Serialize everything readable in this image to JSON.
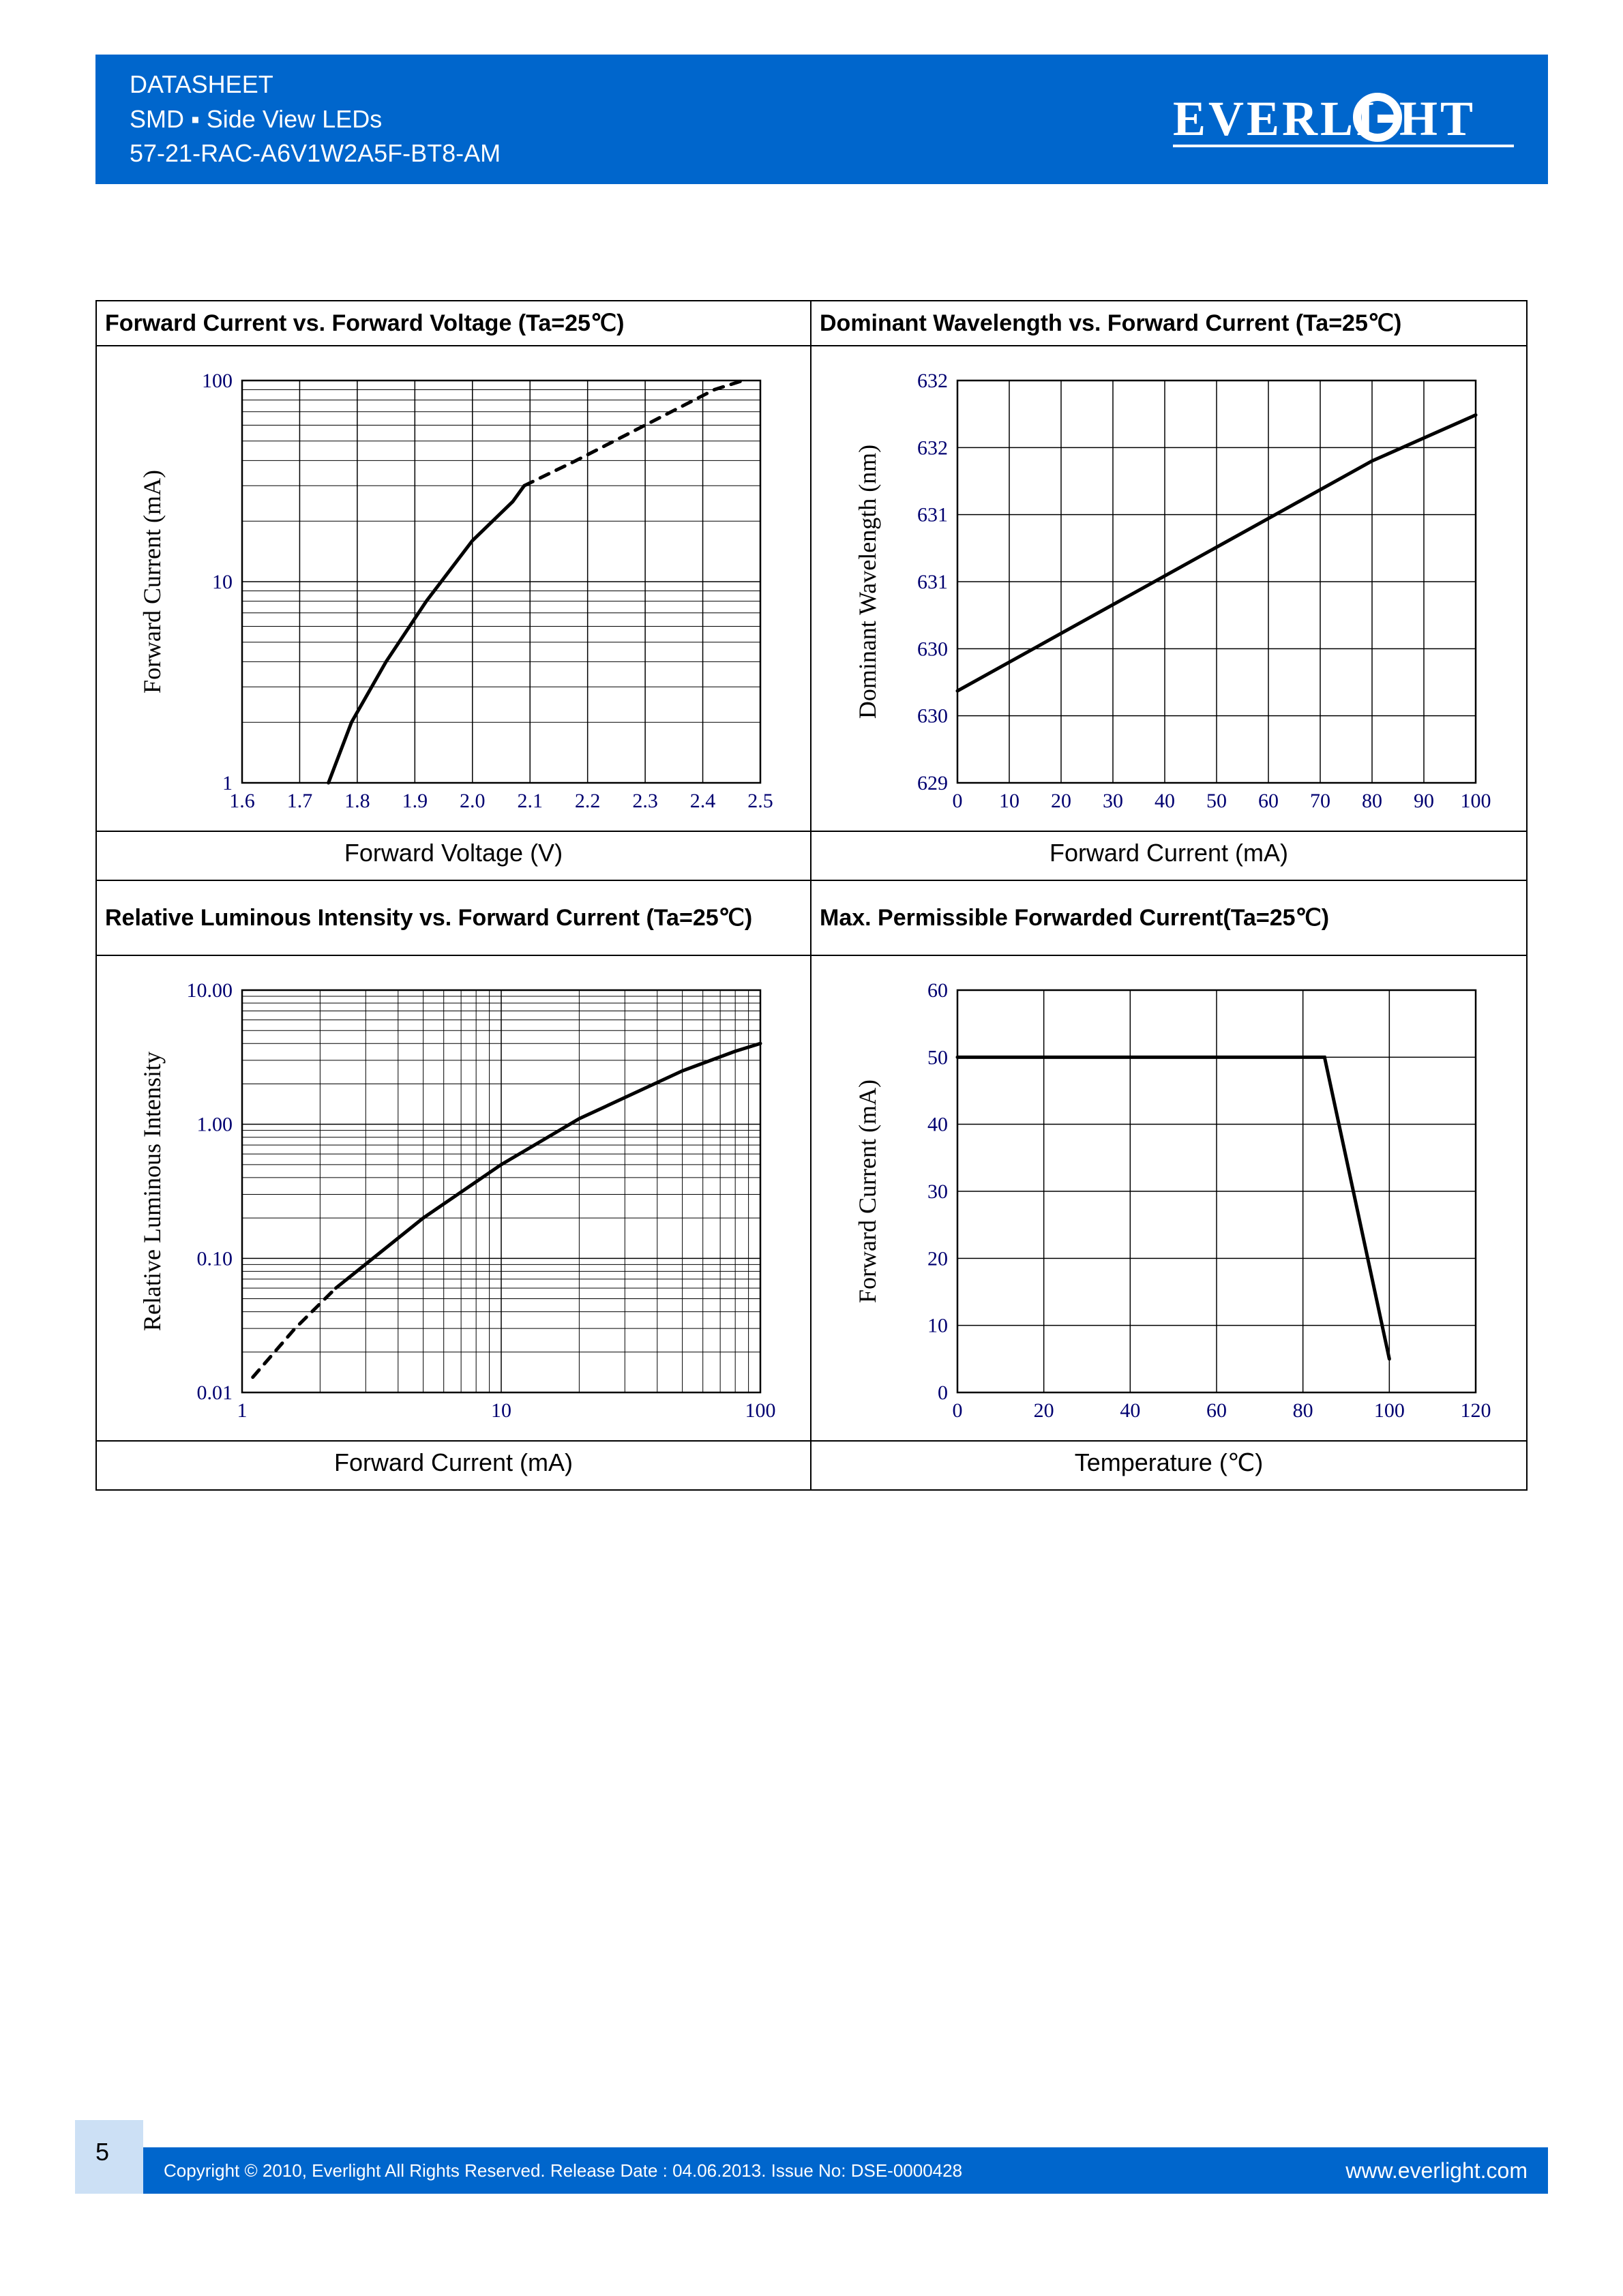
{
  "header": {
    "line1": "DATASHEET",
    "line2": "SMD ▪ Side View LEDs",
    "line3": "57-21-RAC-A6V1W2A5F-BT8-AM",
    "logo_text": "EVERLIGHT"
  },
  "colors": {
    "header_bg": "#0066cc",
    "header_text": "#ffffff",
    "chart_border": "#000000",
    "chart_line": "#000000",
    "chart_text": "#000000",
    "tick_label_color": "#000070",
    "page_bg": "#ffffff"
  },
  "charts": [
    {
      "title": "Forward Current vs. Forward Voltage (Ta=25℃)",
      "xlabel": "Forward Voltage (V)",
      "ylabel": "Forward Current (mA)",
      "x_ticks": [
        "1.6",
        "1.7",
        "1.8",
        "1.9",
        "2.0",
        "2.1",
        "2.2",
        "2.3",
        "2.4",
        "2.5"
      ],
      "y_ticks": [
        "1",
        "10",
        "100"
      ],
      "x_scale": "linear",
      "y_scale": "log",
      "x_range": [
        1.6,
        2.5
      ],
      "y_range_log": [
        0,
        2
      ],
      "minor_y_grid": true,
      "series": [
        {
          "style": "solid",
          "width": 5,
          "color": "#000000",
          "points": [
            [
              1.75,
              1
            ],
            [
              1.79,
              2
            ],
            [
              1.85,
              4
            ],
            [
              1.92,
              8
            ],
            [
              2.0,
              16
            ],
            [
              2.07,
              25
            ],
            [
              2.09,
              30
            ]
          ]
        },
        {
          "style": "dashed",
          "width": 5,
          "color": "#000000",
          "points": [
            [
              2.09,
              30
            ],
            [
              2.18,
              40
            ],
            [
              2.3,
              60
            ],
            [
              2.42,
              90
            ],
            [
              2.47,
              100
            ]
          ]
        }
      ]
    },
    {
      "title": "Dominant Wavelength vs. Forward Current (Ta=25℃)",
      "xlabel": "Forward Current (mA)",
      "ylabel": "Dominant Wavelength (nm)",
      "x_ticks": [
        "0",
        "10",
        "20",
        "30",
        "40",
        "50",
        "60",
        "70",
        "80",
        "90",
        "100"
      ],
      "y_ticks": [
        "629",
        "630",
        "630",
        "631",
        "631",
        "632",
        "632"
      ],
      "x_scale": "linear",
      "y_scale": "linear",
      "x_range": [
        0,
        100
      ],
      "y_range": [
        629,
        632.5
      ],
      "series": [
        {
          "style": "solid",
          "width": 5,
          "color": "#000000",
          "points": [
            [
              0,
              629.8
            ],
            [
              20,
              630.3
            ],
            [
              40,
              630.8
            ],
            [
              60,
              631.3
            ],
            [
              80,
              631.8
            ],
            [
              100,
              632.2
            ]
          ]
        }
      ]
    },
    {
      "title": "Relative Luminous Intensity vs. Forward Current (Ta=25℃)",
      "xlabel": "Forward Current (mA)",
      "ylabel": "Relative Luminous Intensity",
      "x_ticks": [
        "1",
        "10",
        "100"
      ],
      "y_ticks": [
        "0.01",
        "0.10",
        "1.00",
        "10.00"
      ],
      "x_scale": "log",
      "y_scale": "log",
      "x_range_log": [
        0,
        2
      ],
      "y_range_log": [
        -2,
        1
      ],
      "minor_x_grid": true,
      "minor_y_grid": true,
      "series": [
        {
          "style": "dashed",
          "width": 5,
          "color": "#000000",
          "points": [
            [
              1.1,
              0.013
            ],
            [
              1.6,
              0.03
            ],
            [
              2.3,
              0.06
            ]
          ]
        },
        {
          "style": "solid",
          "width": 5,
          "color": "#000000",
          "points": [
            [
              2.3,
              0.06
            ],
            [
              5,
              0.2
            ],
            [
              10,
              0.5
            ],
            [
              20,
              1.1
            ],
            [
              50,
              2.5
            ],
            [
              80,
              3.5
            ],
            [
              100,
              4.0
            ]
          ]
        }
      ]
    },
    {
      "title": "Max. Permissible Forwarded Current(Ta=25℃)",
      "xlabel": "Temperature (℃)",
      "ylabel": "Forward Current (mA)",
      "x_ticks": [
        "0",
        "20",
        "40",
        "60",
        "80",
        "100",
        "120"
      ],
      "y_ticks": [
        "0",
        "10",
        "20",
        "30",
        "40",
        "50",
        "60"
      ],
      "x_scale": "linear",
      "y_scale": "linear",
      "x_range": [
        0,
        120
      ],
      "y_range": [
        0,
        60
      ],
      "series": [
        {
          "style": "solid",
          "width": 5,
          "color": "#000000",
          "points": [
            [
              0,
              50
            ],
            [
              85,
              50
            ],
            [
              100,
              5
            ]
          ]
        }
      ]
    }
  ],
  "footer": {
    "page_number": "5",
    "copyright": "Copyright © 2010, Everlight All Rights Reserved. Release Date : 04.06.2013. Issue No: DSE-0000428",
    "url": "www.everlight.com"
  }
}
